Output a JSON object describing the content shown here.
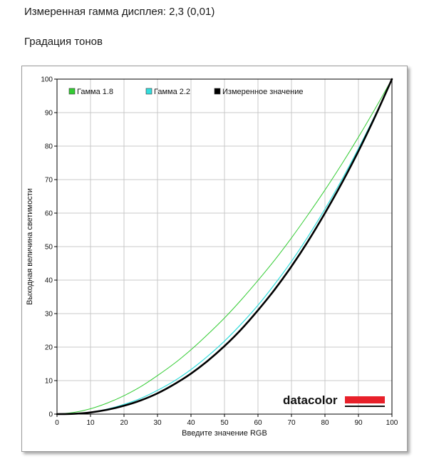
{
  "page": {
    "gamma_heading": "Измеренная гамма дисплея: 2,3 (0,01)",
    "gradation_heading": "Градация тонов"
  },
  "chart_data": {
    "type": "line",
    "xlabel": "Введите значение RGB",
    "ylabel": "Выходная величина светимости",
    "xlim": [
      0,
      100
    ],
    "ylim": [
      0,
      100
    ],
    "xticks": [
      0,
      10,
      20,
      30,
      40,
      50,
      60,
      70,
      80,
      90,
      100
    ],
    "yticks": [
      0,
      10,
      20,
      30,
      40,
      50,
      60,
      70,
      80,
      90,
      100
    ],
    "grid": true,
    "legend_position": "top-left",
    "x": [
      0,
      5,
      10,
      15,
      20,
      25,
      30,
      35,
      40,
      45,
      50,
      55,
      60,
      65,
      70,
      75,
      80,
      85,
      90,
      95,
      100
    ],
    "series": [
      {
        "name": "Гамма 1.8",
        "color": "#33cc33",
        "values": [
          0,
          0.5,
          1.6,
          3.3,
          5.5,
          8.2,
          11.5,
          15.1,
          19.2,
          23.8,
          28.7,
          34.1,
          39.9,
          46.0,
          52.6,
          59.6,
          66.9,
          74.6,
          82.7,
          91.2,
          100
        ]
      },
      {
        "name": "Гамма 2.2",
        "color": "#33dddd",
        "values": [
          0,
          0.1,
          0.6,
          1.5,
          2.9,
          4.7,
          7.1,
          9.9,
          13.3,
          17.3,
          21.8,
          26.9,
          32.5,
          38.8,
          45.6,
          53.1,
          61.2,
          69.9,
          79.3,
          89.3,
          100
        ]
      },
      {
        "name": "Измеренное значение",
        "color": "#000000",
        "values": [
          0,
          0.1,
          0.5,
          1.3,
          2.5,
          4.1,
          6.2,
          8.9,
          12.1,
          15.9,
          20.3,
          25.3,
          31.0,
          37.2,
          44.1,
          51.7,
          60.0,
          68.9,
          78.5,
          88.9,
          100
        ]
      }
    ]
  },
  "logo": {
    "text": "datacolor",
    "accent_color": "#e8202a"
  }
}
